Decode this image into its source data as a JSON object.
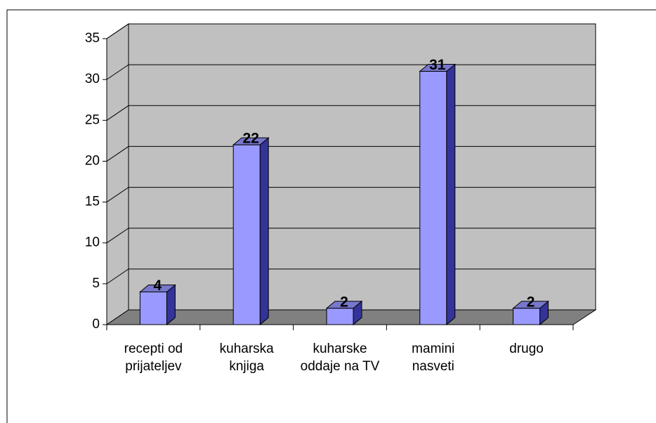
{
  "chart_data": {
    "type": "bar",
    "categories": [
      "recepti od prijateljev",
      "kuharska knjiga",
      "kuharske oddaje na TV",
      "mamini nasveti",
      "drugo"
    ],
    "values": [
      4,
      22,
      2,
      31,
      2
    ],
    "color": "#9999ff",
    "ylim": [
      0,
      35
    ],
    "yticks": [
      0,
      5,
      10,
      15,
      20,
      25,
      30,
      35
    ],
    "grid": true
  }
}
